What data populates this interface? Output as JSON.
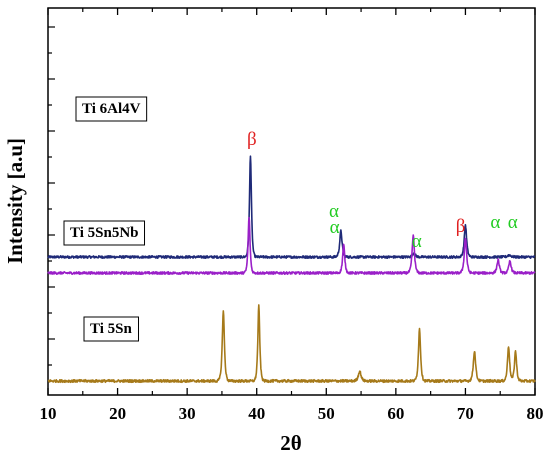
{
  "chart_data": {
    "type": "line",
    "xlabel": "2θ",
    "ylabel": "Intensity [a.u]",
    "xlim": [
      10,
      80
    ],
    "x_ticks": [
      "10",
      "20",
      "30",
      "40",
      "50",
      "60",
      "70",
      "80"
    ],
    "x_tick_values": [
      10,
      20,
      30,
      40,
      50,
      60,
      70,
      80
    ],
    "y_ticks_shown": false,
    "grid": false,
    "legend": false,
    "series": [
      {
        "name": "Ti 6Al4V",
        "color": "#1f2a78",
        "baseline": 138,
        "noise_amplitude": 1.2,
        "peaks": [
          {
            "x": 39.1,
            "height": 102,
            "width": 0.18
          },
          {
            "x": 52.1,
            "height": 26,
            "width": 0.22
          },
          {
            "x": 62.6,
            "height": 4,
            "width": 0.25
          },
          {
            "x": 70.0,
            "height": 32,
            "width": 0.22
          },
          {
            "x": 76.3,
            "height": 2,
            "width": 0.3
          }
        ],
        "annotations": [
          {
            "text": "β",
            "x": 39.3,
            "y": 250,
            "color": "#e02020"
          },
          {
            "text": "α",
            "x": 51.2,
            "y": 162,
            "color": "#22cc22"
          },
          {
            "text": "α",
            "x": 63.0,
            "y": 148,
            "color": "#22cc22"
          },
          {
            "text": "β",
            "x": 69.3,
            "y": 163,
            "color": "#e02020"
          }
        ]
      },
      {
        "name": "Ti 5Sn5Nb",
        "color": "#9a20c8",
        "baseline": 122,
        "noise_amplitude": 1.2,
        "peaks": [
          {
            "x": 38.9,
            "height": 56,
            "width": 0.18
          },
          {
            "x": 52.5,
            "height": 28,
            "width": 0.2
          },
          {
            "x": 62.5,
            "height": 37,
            "width": 0.22
          },
          {
            "x": 70.0,
            "height": 35,
            "width": 0.22
          },
          {
            "x": 74.7,
            "height": 13,
            "width": 0.22
          },
          {
            "x": 76.4,
            "height": 12,
            "width": 0.22
          }
        ],
        "annotations": [
          {
            "text": "α",
            "x": 51.1,
            "y": 178,
            "color": "#22cc22"
          },
          {
            "text": "α",
            "x": 74.3,
            "y": 167,
            "color": "#22cc22"
          },
          {
            "text": "α",
            "x": 76.8,
            "y": 167,
            "color": "#22cc22"
          }
        ]
      },
      {
        "name": "Ti 5Sn",
        "color": "#a67a1a",
        "baseline": 14,
        "noise_amplitude": 1.3,
        "peaks": [
          {
            "x": 35.2,
            "height": 70,
            "width": 0.2
          },
          {
            "x": 40.3,
            "height": 75,
            "width": 0.18
          },
          {
            "x": 54.8,
            "height": 10,
            "width": 0.25
          },
          {
            "x": 63.4,
            "height": 52,
            "width": 0.2
          },
          {
            "x": 71.3,
            "height": 30,
            "width": 0.22
          },
          {
            "x": 76.2,
            "height": 35,
            "width": 0.2
          },
          {
            "x": 77.2,
            "height": 30,
            "width": 0.2
          }
        ],
        "annotations": []
      }
    ]
  }
}
